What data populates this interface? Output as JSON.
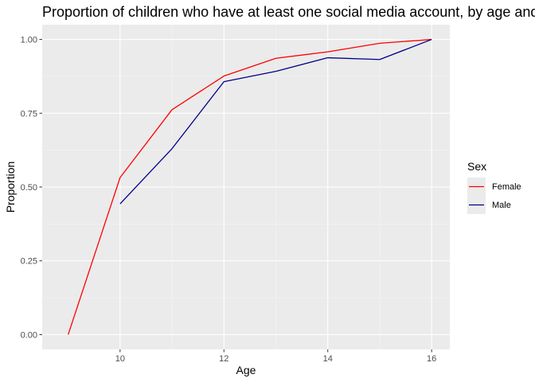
{
  "chart_data": {
    "type": "line",
    "title": "Proportion of children who have at least one social media account, by age and sex",
    "xlabel": "Age",
    "ylabel": "Proportion",
    "xlim": [
      8.5,
      16.35
    ],
    "ylim": [
      -0.05,
      1.05
    ],
    "x_ticks": [
      10,
      12,
      14,
      16
    ],
    "x_tick_labels": [
      "10",
      "12",
      "14",
      "16"
    ],
    "y_ticks": [
      0,
      0.25,
      0.5,
      0.75,
      1.0
    ],
    "y_tick_labels": [
      "0.00",
      "0.25",
      "0.50",
      "0.75",
      "1.00"
    ],
    "grid": true,
    "legend_title": "Sex",
    "legend_position": "right",
    "series": [
      {
        "name": "Female",
        "color": "#ff0000",
        "x": [
          9,
          10,
          11,
          12,
          13,
          14,
          15,
          16
        ],
        "values": [
          0.0,
          0.532,
          0.762,
          0.876,
          0.936,
          0.958,
          0.987,
          1.0
        ]
      },
      {
        "name": "Male",
        "color": "#00008b",
        "x": [
          10,
          11,
          12,
          13,
          14,
          15,
          16
        ],
        "values": [
          0.443,
          0.63,
          0.857,
          0.892,
          0.938,
          0.932,
          1.0
        ]
      }
    ]
  }
}
